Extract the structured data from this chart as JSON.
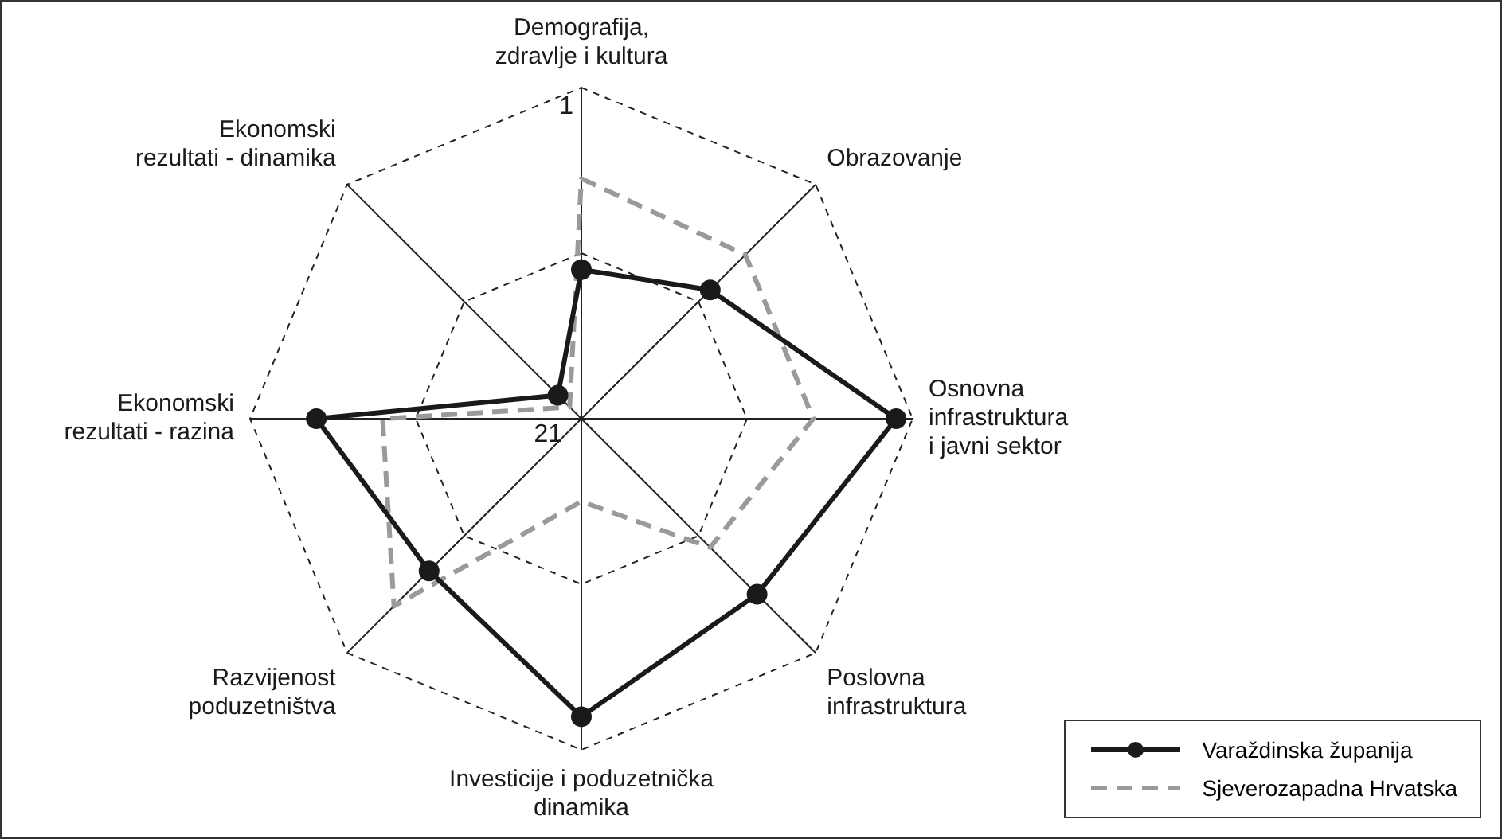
{
  "chart_data": {
    "type": "radar",
    "categories": [
      "Demografija,\nzdravlje i kultura",
      "Obrazovanje",
      "Osnovna\ninfrastruktura\ni javni sektor",
      "Poslovna\ninfrastruktura",
      "Investicije i poduzetnička\ndinamika",
      "Razvijenost\npoduzetništva",
      "Ekonomski\nrezultati - razina",
      "Ekonomski\nrezultati - dinamika"
    ],
    "series": [
      {
        "name": "Varaždinska županija",
        "color": "#1a1a1a",
        "marker": "circle",
        "line_style": "solid",
        "values": [
          12,
          10,
          2,
          6,
          3,
          8,
          5,
          19
        ]
      },
      {
        "name": "Sjeverozapadna Hrvatska",
        "color": "#9a9a9a",
        "marker": "none",
        "line_style": "dashed",
        "values": [
          6.5,
          7,
          7,
          10,
          16,
          5,
          9,
          20
        ]
      }
    ],
    "ylim": [
      21,
      1
    ],
    "yticks": [
      21,
      1
    ],
    "grid": true,
    "legend": "bottom right"
  }
}
